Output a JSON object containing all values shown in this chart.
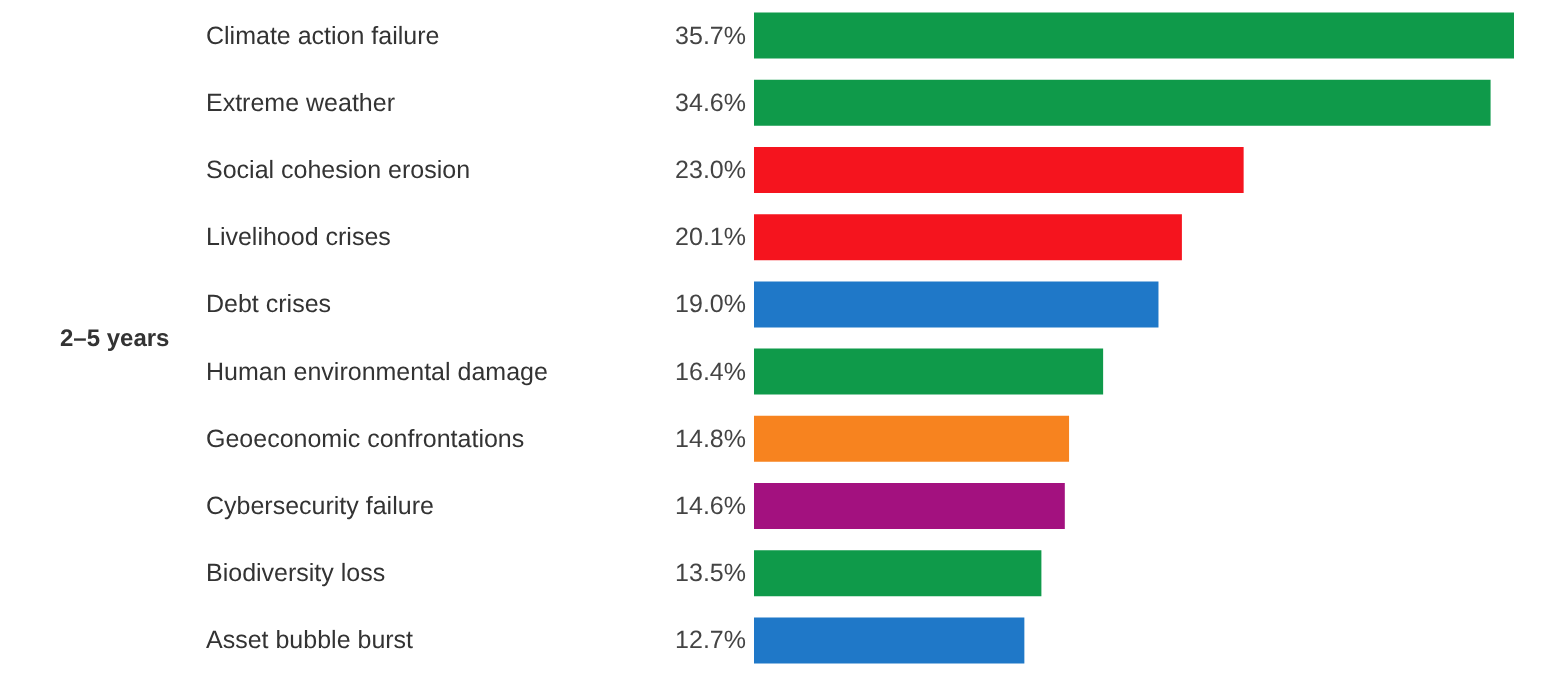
{
  "chart_data": {
    "type": "bar",
    "orientation": "horizontal",
    "ylabel": "2–5 years",
    "categories": [
      "Climate action failure",
      "Extreme weather",
      "Social cohesion erosion",
      "Livelihood crises",
      "Debt crises",
      "Human environmental damage",
      "Geoeconomic confrontations",
      "Cybersecurity failure",
      "Biodiversity loss",
      "Asset bubble burst"
    ],
    "values": [
      35.7,
      34.6,
      23.0,
      20.1,
      19.0,
      16.4,
      14.8,
      14.6,
      13.5,
      12.7
    ],
    "value_labels": [
      "35.7%",
      "34.6%",
      "23.0%",
      "20.1%",
      "19.0%",
      "16.4%",
      "14.8%",
      "14.6%",
      "13.5%",
      "12.7%"
    ],
    "colors": [
      "#0f9a4a",
      "#0f9a4a",
      "#f5141e",
      "#f5141e",
      "#1f78c8",
      "#0f9a4a",
      "#f7831f",
      "#a3117f",
      "#0f9a4a",
      "#1f78c8"
    ]
  }
}
